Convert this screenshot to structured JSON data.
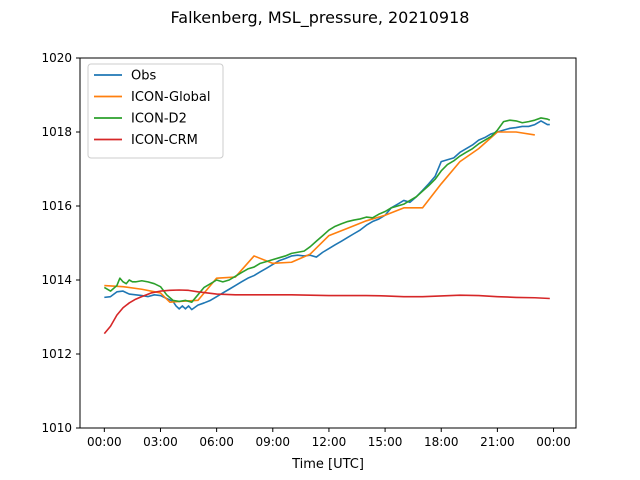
{
  "chart_data": {
    "type": "line",
    "title": "Falkenberg, MSL_pressure, 20210918",
    "xlabel": "Time [UTC]",
    "ylabel": "",
    "xlim": [
      -1.3,
      25.2
    ],
    "ylim": [
      1010,
      1020
    ],
    "xticks": [
      0,
      3,
      6,
      9,
      12,
      15,
      18,
      21,
      24
    ],
    "xtick_labels": [
      "00:00",
      "03:00",
      "06:00",
      "09:00",
      "12:00",
      "15:00",
      "18:00",
      "21:00",
      "00:00"
    ],
    "yticks": [
      1010,
      1012,
      1014,
      1016,
      1018,
      1020
    ],
    "ytick_labels": [
      "1010",
      "1012",
      "1014",
      "1016",
      "1018",
      "1020"
    ],
    "grid": false,
    "legend_position": "top-left",
    "series": [
      {
        "name": "Obs",
        "color": "#1f77b4",
        "points": [
          [
            0.0,
            1013.53
          ],
          [
            0.33,
            1013.55
          ],
          [
            0.67,
            1013.68
          ],
          [
            1.0,
            1013.7
          ],
          [
            1.33,
            1013.62
          ],
          [
            1.67,
            1013.6
          ],
          [
            2.0,
            1013.58
          ],
          [
            2.33,
            1013.55
          ],
          [
            2.67,
            1013.6
          ],
          [
            3.0,
            1013.58
          ],
          [
            3.33,
            1013.5
          ],
          [
            3.67,
            1013.42
          ],
          [
            3.83,
            1013.3
          ],
          [
            4.0,
            1013.22
          ],
          [
            4.17,
            1013.3
          ],
          [
            4.33,
            1013.22
          ],
          [
            4.5,
            1013.3
          ],
          [
            4.67,
            1013.2
          ],
          [
            5.0,
            1013.32
          ],
          [
            5.33,
            1013.38
          ],
          [
            5.67,
            1013.45
          ],
          [
            6.0,
            1013.55
          ],
          [
            6.33,
            1013.65
          ],
          [
            6.67,
            1013.75
          ],
          [
            7.0,
            1013.85
          ],
          [
            7.33,
            1013.95
          ],
          [
            7.67,
            1014.05
          ],
          [
            8.0,
            1014.12
          ],
          [
            8.33,
            1014.22
          ],
          [
            8.67,
            1014.32
          ],
          [
            9.0,
            1014.42
          ],
          [
            9.33,
            1014.52
          ],
          [
            9.67,
            1014.58
          ],
          [
            10.0,
            1014.65
          ],
          [
            10.33,
            1014.67
          ],
          [
            10.67,
            1014.65
          ],
          [
            11.0,
            1014.67
          ],
          [
            11.33,
            1014.62
          ],
          [
            11.67,
            1014.75
          ],
          [
            12.0,
            1014.85
          ],
          [
            12.33,
            1014.95
          ],
          [
            12.67,
            1015.05
          ],
          [
            13.0,
            1015.15
          ],
          [
            13.33,
            1015.25
          ],
          [
            13.67,
            1015.35
          ],
          [
            14.0,
            1015.48
          ],
          [
            14.33,
            1015.58
          ],
          [
            14.67,
            1015.65
          ],
          [
            15.0,
            1015.75
          ],
          [
            15.33,
            1015.95
          ],
          [
            15.67,
            1016.05
          ],
          [
            16.0,
            1016.15
          ],
          [
            16.33,
            1016.1
          ],
          [
            16.67,
            1016.25
          ],
          [
            17.0,
            1016.42
          ],
          [
            17.33,
            1016.6
          ],
          [
            17.67,
            1016.8
          ],
          [
            18.0,
            1017.2
          ],
          [
            18.33,
            1017.25
          ],
          [
            18.67,
            1017.3
          ],
          [
            19.0,
            1017.45
          ],
          [
            19.33,
            1017.55
          ],
          [
            19.67,
            1017.65
          ],
          [
            20.0,
            1017.78
          ],
          [
            20.33,
            1017.85
          ],
          [
            20.67,
            1017.95
          ],
          [
            21.0,
            1018.0
          ],
          [
            21.33,
            1018.05
          ],
          [
            21.67,
            1018.1
          ],
          [
            22.0,
            1018.12
          ],
          [
            22.33,
            1018.15
          ],
          [
            22.67,
            1018.15
          ],
          [
            23.0,
            1018.2
          ],
          [
            23.33,
            1018.3
          ],
          [
            23.67,
            1018.2
          ],
          [
            23.8,
            1018.2
          ]
        ]
      },
      {
        "name": "ICON-Global",
        "color": "#ff7f0e",
        "points": [
          [
            0.0,
            1013.85
          ],
          [
            1.0,
            1013.82
          ],
          [
            2.0,
            1013.75
          ],
          [
            3.0,
            1013.65
          ],
          [
            3.5,
            1013.4
          ],
          [
            4.0,
            1013.42
          ],
          [
            5.0,
            1013.45
          ],
          [
            6.0,
            1014.05
          ],
          [
            7.0,
            1014.08
          ],
          [
            8.0,
            1014.65
          ],
          [
            9.0,
            1014.45
          ],
          [
            10.0,
            1014.48
          ],
          [
            11.0,
            1014.7
          ],
          [
            12.0,
            1015.2
          ],
          [
            13.0,
            1015.4
          ],
          [
            14.0,
            1015.6
          ],
          [
            15.0,
            1015.75
          ],
          [
            16.0,
            1015.95
          ],
          [
            17.0,
            1015.95
          ],
          [
            18.0,
            1016.6
          ],
          [
            19.0,
            1017.2
          ],
          [
            20.0,
            1017.55
          ],
          [
            21.0,
            1018.0
          ],
          [
            22.0,
            1018.0
          ],
          [
            23.0,
            1017.92
          ]
        ]
      },
      {
        "name": "ICON-D2",
        "color": "#2ca02c",
        "points": [
          [
            0.0,
            1013.8
          ],
          [
            0.33,
            1013.7
          ],
          [
            0.67,
            1013.85
          ],
          [
            0.83,
            1014.05
          ],
          [
            1.0,
            1013.95
          ],
          [
            1.17,
            1013.9
          ],
          [
            1.33,
            1014.0
          ],
          [
            1.5,
            1013.95
          ],
          [
            1.67,
            1013.95
          ],
          [
            2.0,
            1013.98
          ],
          [
            2.33,
            1013.95
          ],
          [
            2.67,
            1013.9
          ],
          [
            3.0,
            1013.82
          ],
          [
            3.33,
            1013.6
          ],
          [
            3.67,
            1013.45
          ],
          [
            4.0,
            1013.42
          ],
          [
            4.33,
            1013.45
          ],
          [
            4.67,
            1013.4
          ],
          [
            5.0,
            1013.6
          ],
          [
            5.33,
            1013.8
          ],
          [
            5.67,
            1013.9
          ],
          [
            6.0,
            1014.0
          ],
          [
            6.33,
            1013.95
          ],
          [
            6.67,
            1014.0
          ],
          [
            7.0,
            1014.1
          ],
          [
            7.33,
            1014.2
          ],
          [
            7.67,
            1014.3
          ],
          [
            8.0,
            1014.35
          ],
          [
            8.33,
            1014.45
          ],
          [
            8.67,
            1014.5
          ],
          [
            9.0,
            1014.55
          ],
          [
            9.33,
            1014.6
          ],
          [
            9.67,
            1014.65
          ],
          [
            10.0,
            1014.72
          ],
          [
            10.33,
            1014.75
          ],
          [
            10.67,
            1014.78
          ],
          [
            11.0,
            1014.9
          ],
          [
            11.33,
            1015.05
          ],
          [
            11.67,
            1015.2
          ],
          [
            12.0,
            1015.35
          ],
          [
            12.33,
            1015.45
          ],
          [
            12.67,
            1015.52
          ],
          [
            13.0,
            1015.58
          ],
          [
            13.33,
            1015.62
          ],
          [
            13.67,
            1015.65
          ],
          [
            14.0,
            1015.7
          ],
          [
            14.33,
            1015.68
          ],
          [
            14.67,
            1015.78
          ],
          [
            15.0,
            1015.85
          ],
          [
            15.33,
            1015.95
          ],
          [
            15.67,
            1016.0
          ],
          [
            16.0,
            1016.05
          ],
          [
            16.33,
            1016.15
          ],
          [
            16.67,
            1016.25
          ],
          [
            17.0,
            1016.4
          ],
          [
            17.33,
            1016.55
          ],
          [
            17.67,
            1016.72
          ],
          [
            18.0,
            1016.95
          ],
          [
            18.33,
            1017.12
          ],
          [
            18.67,
            1017.22
          ],
          [
            19.0,
            1017.35
          ],
          [
            19.33,
            1017.45
          ],
          [
            19.67,
            1017.55
          ],
          [
            20.0,
            1017.68
          ],
          [
            20.33,
            1017.78
          ],
          [
            20.67,
            1017.88
          ],
          [
            21.0,
            1018.05
          ],
          [
            21.33,
            1018.28
          ],
          [
            21.67,
            1018.32
          ],
          [
            22.0,
            1018.3
          ],
          [
            22.33,
            1018.25
          ],
          [
            22.67,
            1018.28
          ],
          [
            23.0,
            1018.32
          ],
          [
            23.33,
            1018.38
          ],
          [
            23.67,
            1018.35
          ],
          [
            23.8,
            1018.32
          ]
        ]
      },
      {
        "name": "ICON-CRM",
        "color": "#d62728",
        "points": [
          [
            0.0,
            1012.55
          ],
          [
            0.33,
            1012.75
          ],
          [
            0.67,
            1013.05
          ],
          [
            1.0,
            1013.25
          ],
          [
            1.33,
            1013.38
          ],
          [
            1.67,
            1013.48
          ],
          [
            2.0,
            1013.55
          ],
          [
            2.5,
            1013.65
          ],
          [
            3.0,
            1013.7
          ],
          [
            3.5,
            1013.72
          ],
          [
            4.0,
            1013.73
          ],
          [
            4.5,
            1013.72
          ],
          [
            5.0,
            1013.68
          ],
          [
            5.5,
            1013.65
          ],
          [
            6.0,
            1013.62
          ],
          [
            7.0,
            1013.6
          ],
          [
            8.0,
            1013.6
          ],
          [
            9.0,
            1013.6
          ],
          [
            10.0,
            1013.6
          ],
          [
            11.0,
            1013.59
          ],
          [
            12.0,
            1013.58
          ],
          [
            13.0,
            1013.58
          ],
          [
            14.0,
            1013.58
          ],
          [
            15.0,
            1013.57
          ],
          [
            16.0,
            1013.55
          ],
          [
            17.0,
            1013.55
          ],
          [
            18.0,
            1013.57
          ],
          [
            19.0,
            1013.59
          ],
          [
            20.0,
            1013.58
          ],
          [
            21.0,
            1013.55
          ],
          [
            22.0,
            1013.53
          ],
          [
            23.0,
            1013.52
          ],
          [
            23.8,
            1013.5
          ]
        ]
      }
    ]
  }
}
